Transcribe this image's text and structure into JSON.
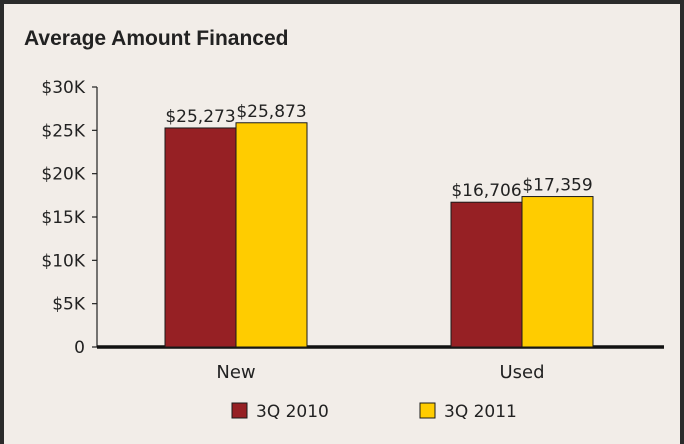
{
  "chart_data": {
    "type": "bar",
    "title": "Average Amount Financed",
    "categories": [
      "New",
      "Used"
    ],
    "series": [
      {
        "name": "3Q 2010",
        "color": "#962024",
        "values": [
          25273,
          16706
        ],
        "labels": [
          "$25,273",
          "$16,706"
        ]
      },
      {
        "name": "3Q 2011",
        "color": "#ffcc00",
        "values": [
          25873,
          17359
        ],
        "labels": [
          "$25,873",
          "$17,359"
        ]
      }
    ],
    "y_ticks": [
      {
        "value": 0,
        "label": "0"
      },
      {
        "value": 5000,
        "label": "$5K"
      },
      {
        "value": 10000,
        "label": "$10K"
      },
      {
        "value": 15000,
        "label": "$15K"
      },
      {
        "value": 20000,
        "label": "$20K"
      },
      {
        "value": 25000,
        "label": "$25K"
      },
      {
        "value": 30000,
        "label": "$30K"
      }
    ],
    "ylim": [
      0,
      30000
    ],
    "grid": false,
    "legend_position": "bottom"
  }
}
